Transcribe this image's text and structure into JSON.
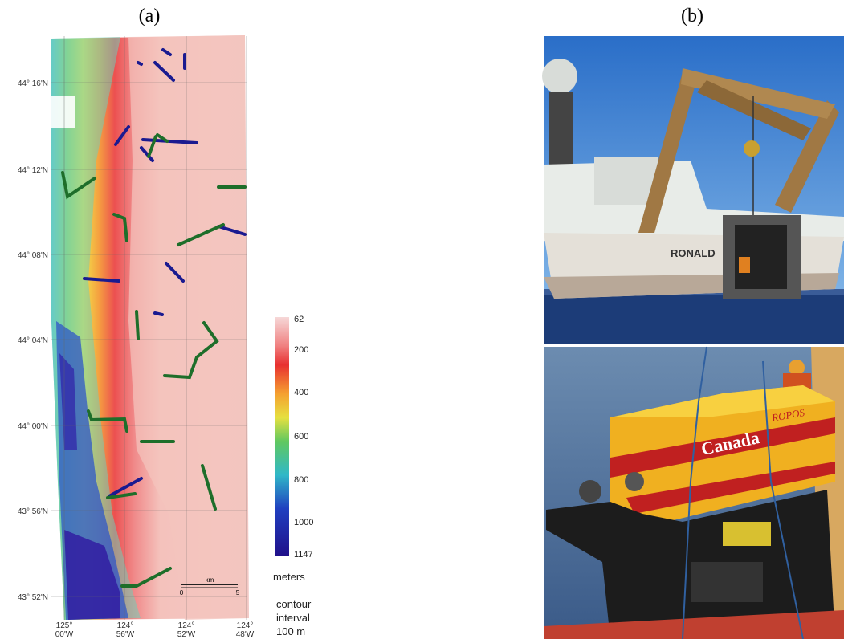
{
  "panels": {
    "a": "(a)",
    "b": "(b)"
  },
  "map": {
    "lat_labels": [
      "44° 16'N",
      "44° 12'N",
      "44° 08'N",
      "44° 04'N",
      "44° 00'N",
      "43° 56'N",
      "43° 52'N"
    ],
    "lon_labels": [
      {
        "deg": "125°",
        "min": "00'W"
      },
      {
        "deg": "124°",
        "min": "56'W"
      },
      {
        "deg": "124°",
        "min": "52'W"
      },
      {
        "deg": "124°",
        "min": "48'W"
      }
    ],
    "scale": {
      "unit": "km",
      "start": "0",
      "end": "5"
    }
  },
  "colorbar": {
    "labels": [
      62,
      200,
      400,
      600,
      800,
      1000,
      1147
    ],
    "unit": "meters",
    "note": [
      "contour",
      "interval",
      "100 m"
    ]
  },
  "photos": {
    "ship_name": "RONALD",
    "rov_text": [
      "Canada",
      "ROPOS"
    ]
  }
}
